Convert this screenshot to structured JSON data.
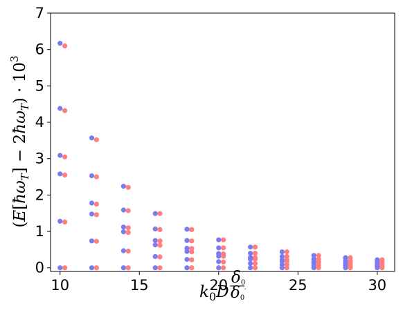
{
  "chart_data": {
    "type": "scatter",
    "title": "",
    "xlabel": "k₀D^(δ₀/δ₀′)",
    "ylabel": "(E[ħω_T] − 2ħω_T)·10³",
    "xlim": [
      9.4,
      31.1
    ],
    "ylim": [
      -0.1,
      7
    ],
    "xticks": [
      "10",
      "15",
      "20",
      "25",
      "30"
    ],
    "yticks": [
      "0",
      "1",
      "2",
      "3",
      "4",
      "5",
      "6",
      "7"
    ],
    "grid": false,
    "legend": "none",
    "colors": {
      "blue": "#7b7bf0",
      "red": "#ff7f7f"
    },
    "series": [
      {
        "color": "blue",
        "points": [
          [
            10,
            6.17
          ],
          [
            10,
            4.38
          ],
          [
            10,
            3.09
          ],
          [
            10,
            2.58
          ],
          [
            10,
            1.28
          ],
          [
            10,
            0.0
          ],
          [
            12,
            3.57
          ],
          [
            12,
            2.53
          ],
          [
            12,
            1.78
          ],
          [
            12,
            1.48
          ],
          [
            12,
            0.74
          ],
          [
            12,
            0.0
          ],
          [
            14,
            2.24
          ],
          [
            14,
            1.59
          ],
          [
            14,
            1.12
          ],
          [
            14,
            0.99
          ],
          [
            14,
            0.47
          ],
          [
            14,
            0.0
          ],
          [
            16,
            1.49
          ],
          [
            16,
            1.07
          ],
          [
            16,
            0.75
          ],
          [
            16,
            0.63
          ],
          [
            16,
            0.31
          ],
          [
            16,
            0.0
          ],
          [
            18,
            1.06
          ],
          [
            18,
            0.75
          ],
          [
            18,
            0.54
          ],
          [
            18,
            0.45
          ],
          [
            18,
            0.23
          ],
          [
            18,
            0.0
          ],
          [
            20,
            0.77
          ],
          [
            20,
            0.55
          ],
          [
            20,
            0.39
          ],
          [
            20,
            0.32
          ],
          [
            20,
            0.17
          ],
          [
            20,
            0.0
          ],
          [
            22,
            0.57
          ],
          [
            22,
            0.4
          ],
          [
            22,
            0.29
          ],
          [
            22,
            0.24
          ],
          [
            22,
            0.12
          ],
          [
            22,
            0.0
          ],
          [
            24,
            0.44
          ],
          [
            24,
            0.31
          ],
          [
            24,
            0.22
          ],
          [
            24,
            0.18
          ],
          [
            24,
            0.09
          ],
          [
            24,
            0.0
          ],
          [
            26,
            0.34
          ],
          [
            26,
            0.24
          ],
          [
            26,
            0.17
          ],
          [
            26,
            0.14
          ],
          [
            26,
            0.07
          ],
          [
            26,
            0.0
          ],
          [
            28,
            0.28
          ],
          [
            28,
            0.2
          ],
          [
            28,
            0.14
          ],
          [
            28,
            0.11
          ],
          [
            28,
            0.06
          ],
          [
            28,
            0.0
          ],
          [
            30,
            0.22
          ],
          [
            30,
            0.16
          ],
          [
            30,
            0.11
          ],
          [
            30,
            0.09
          ],
          [
            30,
            0.05
          ],
          [
            30,
            0.0
          ]
        ]
      },
      {
        "color": "red",
        "points": [
          [
            10.3,
            6.1
          ],
          [
            10.3,
            4.32
          ],
          [
            10.3,
            3.05
          ],
          [
            10.3,
            2.55
          ],
          [
            10.3,
            1.26
          ],
          [
            10.3,
            0.0
          ],
          [
            12.3,
            3.52
          ],
          [
            12.3,
            2.5
          ],
          [
            12.3,
            1.75
          ],
          [
            12.3,
            1.46
          ],
          [
            12.3,
            0.73
          ],
          [
            12.3,
            0.0
          ],
          [
            14.3,
            2.21
          ],
          [
            14.3,
            1.57
          ],
          [
            14.3,
            1.1
          ],
          [
            14.3,
            0.97
          ],
          [
            14.3,
            0.46
          ],
          [
            14.3,
            0.0
          ],
          [
            16.3,
            1.49
          ],
          [
            16.3,
            1.05
          ],
          [
            16.3,
            0.74
          ],
          [
            16.3,
            0.62
          ],
          [
            16.3,
            0.3
          ],
          [
            16.3,
            0.0
          ],
          [
            18.3,
            1.05
          ],
          [
            18.3,
            0.74
          ],
          [
            18.3,
            0.53
          ],
          [
            18.3,
            0.44
          ],
          [
            18.3,
            0.22
          ],
          [
            18.3,
            0.0
          ],
          [
            20.3,
            0.77
          ],
          [
            20.3,
            0.55
          ],
          [
            20.3,
            0.38
          ],
          [
            20.3,
            0.32
          ],
          [
            20.3,
            0.16
          ],
          [
            20.3,
            0.0
          ],
          [
            22.3,
            0.57
          ],
          [
            22.3,
            0.4
          ],
          [
            22.3,
            0.28
          ],
          [
            22.3,
            0.24
          ],
          [
            22.3,
            0.12
          ],
          [
            22.3,
            0.0
          ],
          [
            24.3,
            0.44
          ],
          [
            24.3,
            0.31
          ],
          [
            24.3,
            0.22
          ],
          [
            24.3,
            0.18
          ],
          [
            24.3,
            0.09
          ],
          [
            24.3,
            0.0
          ],
          [
            26.3,
            0.34
          ],
          [
            26.3,
            0.24
          ],
          [
            26.3,
            0.17
          ],
          [
            26.3,
            0.14
          ],
          [
            26.3,
            0.07
          ],
          [
            26.3,
            0.0
          ],
          [
            28.3,
            0.28
          ],
          [
            28.3,
            0.2
          ],
          [
            28.3,
            0.14
          ],
          [
            28.3,
            0.11
          ],
          [
            28.3,
            0.06
          ],
          [
            28.3,
            0.0
          ],
          [
            30.3,
            0.22
          ],
          [
            30.3,
            0.16
          ],
          [
            30.3,
            0.11
          ],
          [
            30.3,
            0.09
          ],
          [
            30.3,
            0.05
          ],
          [
            30.3,
            0.0
          ]
        ]
      }
    ]
  }
}
